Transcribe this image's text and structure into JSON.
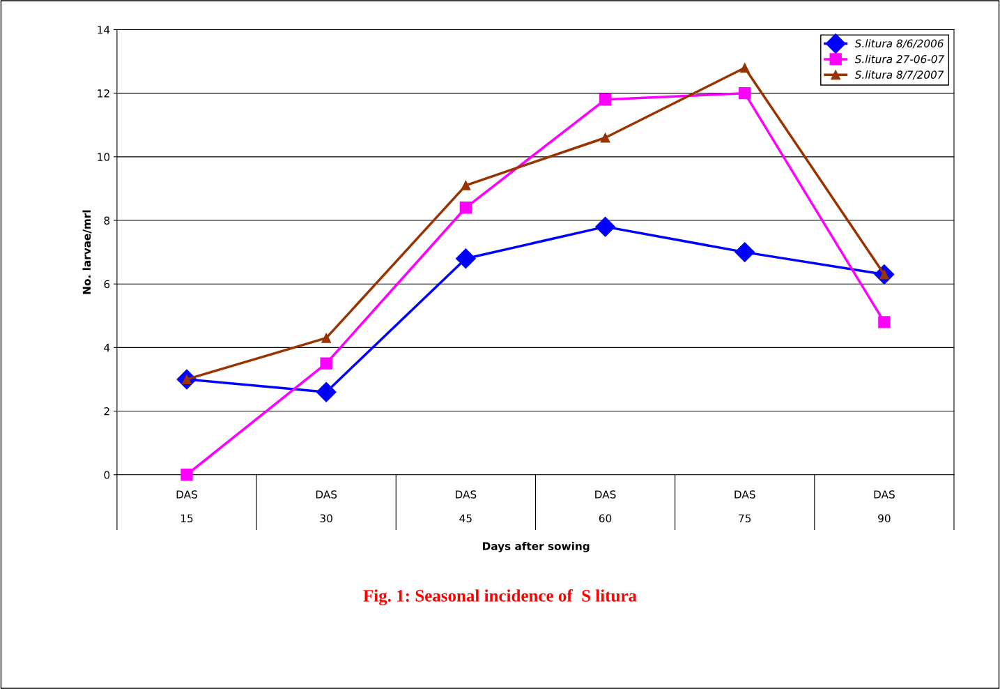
{
  "chart_data": {
    "type": "line",
    "title": "Fig. 1: Seasonal incidence of  S litura",
    "annotations": [
      "Days after sowing"
    ],
    "ylabel": "No. larvae/mrl",
    "categories": [
      "DAS\n\n15",
      "DAS\n\n30",
      "DAS\n\n45",
      "DAS\n\n60",
      "DAS\n\n75",
      "DAS\n\n90"
    ],
    "series": [
      {
        "name": "S.litura 8/6/2006",
        "color": "#0000ff",
        "marker": "diamond",
        "values": [
          3.0,
          2.6,
          6.8,
          7.8,
          7.0,
          6.3
        ]
      },
      {
        "name": "S.litura 27-06-07",
        "color": "#ff00ff",
        "marker": "square",
        "values": [
          0.0,
          3.5,
          8.4,
          11.8,
          12.0,
          4.8
        ]
      },
      {
        "name": "S.litura 8/7/2007",
        "color": "#993300",
        "marker": "triangle",
        "values": [
          3.0,
          4.3,
          9.1,
          10.6,
          12.8,
          6.3
        ]
      }
    ],
    "ylim": [
      0,
      14
    ],
    "yticks": [
      0,
      2,
      4,
      6,
      8,
      10,
      12,
      14
    ],
    "grid": "y",
    "legend": "top right",
    "line_style": "solid"
  }
}
